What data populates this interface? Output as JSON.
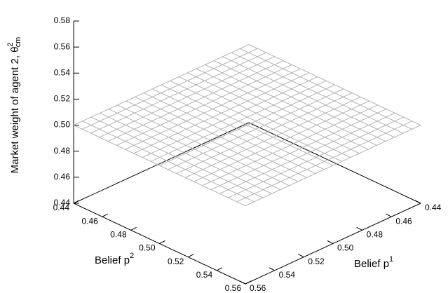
{
  "chart_data": {
    "type": "surface3d",
    "xlabel": "Belief p",
    "xlabel_sup": "1",
    "ylabel": "Belief p",
    "ylabel_sup": "2",
    "zlabel": "Market weight of agent 2, θ",
    "zlabel_sup": "2",
    "zlabel_sub": "cm",
    "color": "#b0b0b0",
    "x": [
      0.44,
      0.446,
      0.452,
      0.458,
      0.464,
      0.47,
      0.476,
      0.482,
      0.488,
      0.494,
      0.5,
      0.506,
      0.512,
      0.518,
      0.524,
      0.53,
      0.536,
      0.542,
      0.548,
      0.554,
      0.56
    ],
    "y": [
      0.44,
      0.446,
      0.452,
      0.458,
      0.464,
      0.47,
      0.476,
      0.482,
      0.488,
      0.494,
      0.5,
      0.506,
      0.512,
      0.518,
      0.524,
      0.53,
      0.536,
      0.542,
      0.548,
      0.554,
      0.56
    ],
    "z": [
      [
        0.5,
        0.5,
        0.5,
        0.5,
        0.5,
        0.5,
        0.5,
        0.5,
        0.5,
        0.5,
        0.5,
        0.5,
        0.5,
        0.5,
        0.5,
        0.5,
        0.5,
        0.5,
        0.5,
        0.5,
        0.5
      ],
      [
        0.5,
        0.5,
        0.5,
        0.5,
        0.5,
        0.5,
        0.5,
        0.5,
        0.5,
        0.5,
        0.5,
        0.5,
        0.5,
        0.5,
        0.5,
        0.5,
        0.5,
        0.5,
        0.5,
        0.5,
        0.5
      ],
      [
        0.5,
        0.5,
        0.5,
        0.5,
        0.5,
        0.5,
        0.5,
        0.5,
        0.5,
        0.5,
        0.5,
        0.5,
        0.5,
        0.5,
        0.5,
        0.5,
        0.5,
        0.5,
        0.5,
        0.5,
        0.5
      ],
      [
        0.5,
        0.5,
        0.5,
        0.5,
        0.5,
        0.5,
        0.5,
        0.5,
        0.5,
        0.5,
        0.5,
        0.5,
        0.5,
        0.5,
        0.5,
        0.5,
        0.5,
        0.5,
        0.5,
        0.5,
        0.5
      ],
      [
        0.5,
        0.5,
        0.5,
        0.5,
        0.5,
        0.5,
        0.5,
        0.5,
        0.5,
        0.5,
        0.5,
        0.5,
        0.5,
        0.5,
        0.5,
        0.5,
        0.5,
        0.5,
        0.5,
        0.5,
        0.5
      ],
      [
        0.5,
        0.5,
        0.5,
        0.5,
        0.5,
        0.5,
        0.5,
        0.5,
        0.5,
        0.5,
        0.5,
        0.5,
        0.5,
        0.5,
        0.5,
        0.5,
        0.5,
        0.5,
        0.5,
        0.5,
        0.5
      ],
      [
        0.5,
        0.5,
        0.5,
        0.5,
        0.5,
        0.5,
        0.5,
        0.5,
        0.5,
        0.5,
        0.5,
        0.5,
        0.5,
        0.5,
        0.5,
        0.5,
        0.5,
        0.5,
        0.5,
        0.5,
        0.5
      ],
      [
        0.5,
        0.5,
        0.5,
        0.5,
        0.5,
        0.5,
        0.5,
        0.5,
        0.5,
        0.5,
        0.5,
        0.5,
        0.5,
        0.5,
        0.5,
        0.5,
        0.5,
        0.5,
        0.5,
        0.5,
        0.5
      ],
      [
        0.5,
        0.5,
        0.5,
        0.5,
        0.5,
        0.5,
        0.5,
        0.5,
        0.5,
        0.5,
        0.5,
        0.5,
        0.5,
        0.5,
        0.5,
        0.5,
        0.5,
        0.5,
        0.5,
        0.5,
        0.5
      ],
      [
        0.5,
        0.5,
        0.5,
        0.5,
        0.5,
        0.5,
        0.5,
        0.5,
        0.5,
        0.5,
        0.5,
        0.5,
        0.5,
        0.5,
        0.5,
        0.5,
        0.5,
        0.5,
        0.5,
        0.5,
        0.5
      ],
      [
        0.5,
        0.5,
        0.5,
        0.5,
        0.5,
        0.5,
        0.5,
        0.5,
        0.5,
        0.5,
        0.5,
        0.5,
        0.5,
        0.5,
        0.5,
        0.5,
        0.5,
        0.5,
        0.5,
        0.5,
        0.5
      ],
      [
        0.5,
        0.5,
        0.5,
        0.5,
        0.5,
        0.5,
        0.5,
        0.5,
        0.5,
        0.5,
        0.5,
        0.5,
        0.5,
        0.5,
        0.5,
        0.5,
        0.5,
        0.5,
        0.5,
        0.5,
        0.5
      ],
      [
        0.5,
        0.5,
        0.5,
        0.5,
        0.5,
        0.5,
        0.5,
        0.5,
        0.5,
        0.5,
        0.5,
        0.5,
        0.5,
        0.5,
        0.5,
        0.5,
        0.5,
        0.5,
        0.5,
        0.5,
        0.5
      ],
      [
        0.5,
        0.5,
        0.5,
        0.5,
        0.5,
        0.5,
        0.5,
        0.5,
        0.5,
        0.5,
        0.5,
        0.5,
        0.5,
        0.5,
        0.5,
        0.5,
        0.5,
        0.5,
        0.5,
        0.5,
        0.5
      ],
      [
        0.5,
        0.5,
        0.5,
        0.5,
        0.5,
        0.5,
        0.5,
        0.5,
        0.5,
        0.5,
        0.5,
        0.5,
        0.5,
        0.5,
        0.5,
        0.5,
        0.5,
        0.5,
        0.5,
        0.5,
        0.5
      ],
      [
        0.5,
        0.5,
        0.5,
        0.5,
        0.5,
        0.5,
        0.5,
        0.5,
        0.5,
        0.5,
        0.5,
        0.5,
        0.5,
        0.5,
        0.5,
        0.5,
        0.5,
        0.5,
        0.5,
        0.5,
        0.5
      ],
      [
        0.5,
        0.5,
        0.5,
        0.5,
        0.5,
        0.5,
        0.5,
        0.5,
        0.5,
        0.5,
        0.5,
        0.5,
        0.5,
        0.5,
        0.5,
        0.5,
        0.5,
        0.5,
        0.5,
        0.5,
        0.5
      ],
      [
        0.5,
        0.5,
        0.5,
        0.5,
        0.5,
        0.5,
        0.5,
        0.5,
        0.5,
        0.5,
        0.5,
        0.5,
        0.5,
        0.5,
        0.5,
        0.5,
        0.5,
        0.5,
        0.5,
        0.5,
        0.5
      ],
      [
        0.5,
        0.5,
        0.5,
        0.5,
        0.5,
        0.5,
        0.5,
        0.5,
        0.5,
        0.5,
        0.5,
        0.5,
        0.5,
        0.5,
        0.5,
        0.5,
        0.5,
        0.5,
        0.5,
        0.5,
        0.5
      ],
      [
        0.5,
        0.5,
        0.5,
        0.5,
        0.5,
        0.5,
        0.5,
        0.5,
        0.5,
        0.5,
        0.5,
        0.5,
        0.5,
        0.5,
        0.5,
        0.5,
        0.5,
        0.5,
        0.5,
        0.5,
        0.5
      ],
      [
        0.5,
        0.5,
        0.5,
        0.5,
        0.5,
        0.5,
        0.5,
        0.5,
        0.5,
        0.5,
        0.5,
        0.5,
        0.5,
        0.5,
        0.5,
        0.5,
        0.5,
        0.5,
        0.5,
        0.5,
        0.5
      ]
    ],
    "xlim": [
      0.44,
      0.56
    ],
    "ylim": [
      0.44,
      0.56
    ],
    "zlim": [
      0.44,
      0.58
    ],
    "xticks": [
      0.44,
      0.46,
      0.48,
      {
        "value": 0.5,
        "label": "0.50"
      },
      0.52,
      0.54,
      0.56
    ],
    "yticks": [
      0.44,
      0.46,
      0.48,
      {
        "value": 0.5,
        "label": "0.50"
      },
      0.52,
      0.54,
      0.56
    ],
    "zticks": [
      0.44,
      0.46,
      0.48,
      {
        "value": 0.5,
        "label": "0.50"
      },
      0.52,
      0.54,
      0.56,
      0.58
    ]
  }
}
